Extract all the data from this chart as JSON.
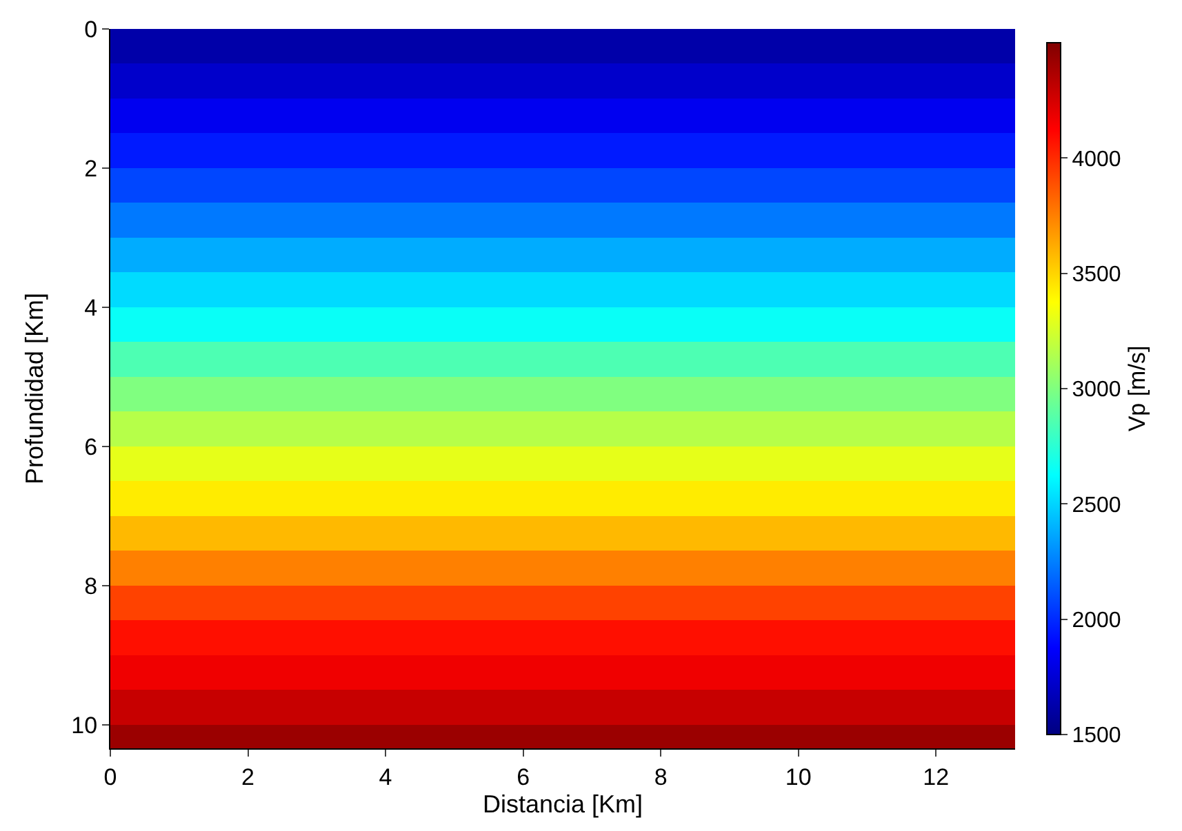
{
  "chart_data": {
    "type": "heatmap",
    "xlabel": "Distancia [Km]",
    "ylabel": "Profundidad [Km]",
    "clabel": "Vp [m/s]",
    "x": [
      3.3,
      9.9
    ],
    "y": [
      0.25,
      0.75,
      1.25,
      1.75,
      2.25,
      2.75,
      3.25,
      3.75,
      4.25,
      4.75,
      5.25,
      5.75,
      6.25,
      6.75,
      7.25,
      7.75,
      8.25,
      8.75,
      9.25,
      9.75,
      10.25
    ],
    "cells": [
      [
        1620,
        1620
      ],
      [
        1720,
        1720
      ],
      [
        1830,
        1830
      ],
      [
        1950,
        1950
      ],
      [
        2080,
        2080
      ],
      [
        2230,
        2230
      ],
      [
        2380,
        2380
      ],
      [
        2520,
        2520
      ],
      [
        2650,
        2650
      ],
      [
        2850,
        2850
      ],
      [
        3000,
        3000
      ],
      [
        3160,
        3160
      ],
      [
        3300,
        3300
      ],
      [
        3430,
        3430
      ],
      [
        3580,
        3580
      ],
      [
        3750,
        3750
      ],
      [
        3930,
        3930
      ],
      [
        4080,
        4080
      ],
      [
        4170,
        4170
      ],
      [
        4290,
        4290
      ],
      [
        4420,
        4420
      ]
    ],
    "xlim": [
      0,
      13.15
    ],
    "xticks": [
      0,
      2,
      4,
      6,
      8,
      10,
      12
    ],
    "ylim": [
      10.34,
      0
    ],
    "yticks": [
      0,
      2,
      4,
      6,
      8,
      10
    ],
    "clim": [
      1500,
      4500
    ],
    "cticks": [
      1500,
      2000,
      2500,
      3000,
      3500,
      4000
    ]
  }
}
